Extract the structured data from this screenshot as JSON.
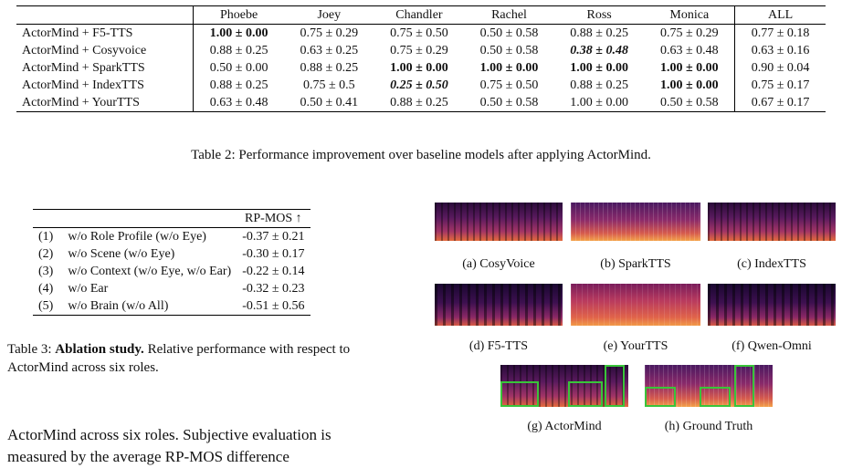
{
  "table2": {
    "columns": [
      "Phoebe",
      "Joey",
      "Chandler",
      "Rachel",
      "Ross",
      "Monica",
      "ALL"
    ],
    "rows": [
      {
        "model": "ActorMind + F5-TTS",
        "cells": [
          "1.00 ± 0.00",
          "0.75 ± 0.29",
          "0.75 ± 0.50",
          "0.50 ± 0.58",
          "0.88 ± 0.25",
          "0.75 ± 0.29",
          "0.77 ± 0.18"
        ],
        "style": [
          "b",
          "",
          "",
          "",
          "",
          "",
          ""
        ]
      },
      {
        "model": "ActorMind + Cosyvoice",
        "cells": [
          "0.88 ± 0.25",
          "0.63 ± 0.25",
          "0.75 ± 0.29",
          "0.50 ± 0.58",
          "0.38 ± 0.48",
          "0.63 ± 0.48",
          "0.63 ± 0.16"
        ],
        "style": [
          "",
          "",
          "",
          "",
          "bi",
          "",
          ""
        ]
      },
      {
        "model": "ActorMind + SparkTTS",
        "cells": [
          "0.50 ± 0.00",
          "0.88 ± 0.25",
          "1.00 ± 0.00",
          "1.00 ± 0.00",
          "1.00 ± 0.00",
          "1.00 ± 0.00",
          "0.90 ± 0.04"
        ],
        "style": [
          "",
          "",
          "b",
          "b",
          "b",
          "b",
          ""
        ]
      },
      {
        "model": "ActorMind + IndexTTS",
        "cells": [
          "0.88 ± 0.25",
          "0.75 ± 0.5",
          "0.25 ± 0.50",
          "0.75 ± 0.50",
          "0.88 ± 0.25",
          "1.00 ± 0.00",
          "0.75 ± 0.17"
        ],
        "style": [
          "",
          "",
          "bi",
          "",
          "",
          "b",
          ""
        ]
      },
      {
        "model": "ActorMind + YourTTS",
        "cells": [
          "0.63 ± 0.48",
          "0.50 ± 0.41",
          "0.88 ± 0.25",
          "0.50 ± 0.58",
          "1.00 ± 0.00",
          "0.50 ± 0.58",
          "0.67 ± 0.17"
        ],
        "style": [
          "",
          "",
          "",
          "",
          "",
          "",
          ""
        ]
      }
    ],
    "caption": "Table 2: Performance improvement over baseline models after applying ActorMind."
  },
  "table3": {
    "header": "RP-MOS ↑",
    "rows": [
      {
        "num": "(1)",
        "label": "w/o Role Profile (w/o Eye)",
        "value": "-0.37 ± 0.21"
      },
      {
        "num": "(2)",
        "label": "w/o Scene (w/o Eye)",
        "value": "-0.30 ± 0.17"
      },
      {
        "num": "(3)",
        "label": "w/o Context (w/o Eye, w/o Ear)",
        "value": "-0.22 ± 0.14"
      },
      {
        "num": "(4)",
        "label": "w/o Ear",
        "value": "-0.32 ± 0.23"
      },
      {
        "num": "(5)",
        "label": "w/o Brain (w/o All)",
        "value": "-0.51 ± 0.56"
      }
    ],
    "caption_prefix": "Table 3:",
    "caption_bold": "Ablation study.",
    "caption_rest": "Relative performance with respect to ActorMind across six roles."
  },
  "body_text": "ActorMind across six roles. Subjective evaluation is measured by the average RP-MOS difference",
  "figure": {
    "panels": [
      "(a) CosyVoice",
      "(b) SparkTTS",
      "(c) IndexTTS",
      "(d) F5-TTS",
      "(e) YourTTS",
      "(f) Qwen-Omni",
      "(g) ActorMind",
      "(h) Ground Truth"
    ],
    "highlight_color": "#39c43a"
  }
}
